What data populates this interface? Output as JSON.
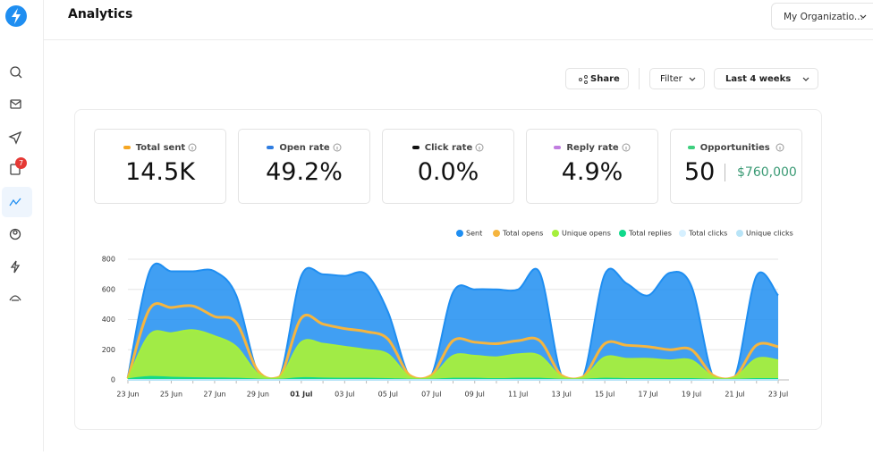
{
  "header": {
    "title": "Analytics",
    "org": "My Organizatio..."
  },
  "sidebar": {
    "badge": "7"
  },
  "toolbar": {
    "share": "Share",
    "filter": "Filter",
    "range": "Last 4 weeks"
  },
  "stats": [
    {
      "label": "Total sent",
      "value": "14.5K",
      "color": "#f5a623"
    },
    {
      "label": "Open rate",
      "value": "49.2%",
      "color": "#2f7de1"
    },
    {
      "label": "Click rate",
      "value": "0.0%",
      "color": "#111111"
    },
    {
      "label": "Reply rate",
      "value": "4.9%",
      "color": "#c17de0"
    }
  ],
  "opportunities": {
    "label": "Opportunities",
    "color": "#3ecf7e",
    "count": "50",
    "amount": "$760,000"
  },
  "chart_data": {
    "type": "area",
    "x": [
      "23 Jun",
      null,
      "25 Jun",
      null,
      "27 Jun",
      null,
      "29 Jun",
      null,
      "01 Jul",
      null,
      "03 Jul",
      null,
      "05 Jul",
      null,
      "07 Jul",
      null,
      "09 Jul",
      null,
      "11 Jul",
      null,
      "13 Jul",
      null,
      "15 Jul",
      null,
      "17 Jul",
      null,
      "19 Jul",
      null,
      "21 Jul",
      null,
      "23 Jul"
    ],
    "series": [
      {
        "name": "Sent",
        "color": "#1f8ef1",
        "values": [
          20,
          720,
          720,
          720,
          720,
          560,
          50,
          20,
          690,
          700,
          690,
          700,
          450,
          20,
          30,
          580,
          600,
          600,
          600,
          710,
          30,
          20,
          700,
          640,
          560,
          710,
          620,
          20,
          20,
          690,
          560
        ]
      },
      {
        "name": "Total opens",
        "color": "#f5b53f",
        "values": [
          10,
          470,
          480,
          490,
          420,
          380,
          60,
          20,
          410,
          370,
          340,
          320,
          270,
          30,
          30,
          260,
          250,
          240,
          260,
          260,
          30,
          20,
          240,
          230,
          220,
          200,
          200,
          30,
          20,
          230,
          220
        ]
      },
      {
        "name": "Unique opens",
        "color": "#a6ef3c",
        "values": [
          5,
          300,
          310,
          330,
          290,
          220,
          40,
          15,
          250,
          240,
          220,
          200,
          170,
          20,
          20,
          160,
          160,
          150,
          170,
          160,
          20,
          15,
          150,
          140,
          140,
          130,
          130,
          20,
          15,
          140,
          130
        ]
      },
      {
        "name": "Total replies",
        "color": "#10d98b",
        "values": [
          5,
          20,
          15,
          12,
          10,
          8,
          3,
          2,
          12,
          10,
          8,
          8,
          6,
          2,
          2,
          8,
          8,
          6,
          8,
          8,
          2,
          2,
          8,
          6,
          6,
          6,
          6,
          2,
          2,
          6,
          6
        ]
      },
      {
        "name": "Total clicks",
        "color": "#d6f0ff",
        "values": [
          0,
          0,
          0,
          0,
          0,
          0,
          0,
          0,
          0,
          0,
          0,
          0,
          0,
          0,
          0,
          0,
          0,
          0,
          0,
          0,
          0,
          0,
          0,
          0,
          0,
          0,
          0,
          0,
          0,
          0,
          0
        ]
      },
      {
        "name": "Unique clicks",
        "color": "#b8e4f7",
        "values": [
          0,
          0,
          0,
          0,
          0,
          0,
          0,
          0,
          0,
          0,
          0,
          0,
          0,
          0,
          0,
          0,
          0,
          0,
          0,
          0,
          0,
          0,
          0,
          0,
          0,
          0,
          0,
          0,
          0,
          0,
          0
        ]
      }
    ],
    "ylim": [
      0,
      800
    ],
    "yticks": [
      0,
      200,
      400,
      600,
      800
    ],
    "grid": true
  }
}
